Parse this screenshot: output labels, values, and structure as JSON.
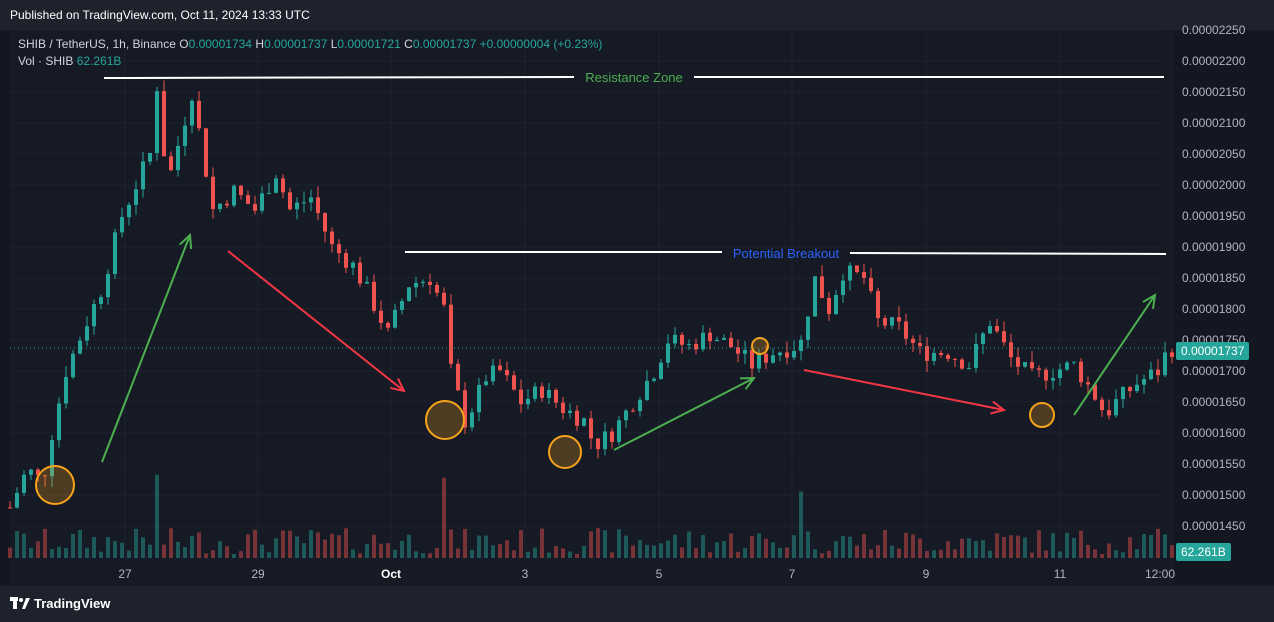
{
  "header": {
    "published": "Published on TradingView.com, Oct 11, 2024 13:33 UTC"
  },
  "legend": {
    "symbol": "SHIB / TetherUS, 1h, Binance",
    "open_label": "O",
    "open": "0.00001734",
    "high_label": "H",
    "high": "0.00001737",
    "low_label": "L",
    "low": "0.00001721",
    "close_label": "C",
    "close": "0.00001737",
    "change": "+0.00000004 (+0.23%)",
    "vol_label": "Vol · SHIB",
    "vol": "62.261B"
  },
  "footer": {
    "brand": "TradingView"
  },
  "colors": {
    "up": "#26a69a",
    "down": "#ef5350",
    "bg": "#161a25",
    "grid": "#1f2330",
    "green_arrow": "#4caf50",
    "red_arrow": "#f23645",
    "circle": "#f7a21b"
  },
  "chart_data": {
    "type": "candlestick",
    "x_ticks": [
      "27",
      "29",
      "Oct",
      "3",
      "5",
      "7",
      "9",
      "11",
      "12:00"
    ],
    "y_ticks": [
      "0.00002250",
      "0.00002200",
      "0.00002150",
      "0.00002100",
      "0.00002050",
      "0.00002000",
      "0.00001950",
      "0.00001900",
      "0.00001850",
      "0.00001800",
      "0.00001750",
      "0.00001700",
      "0.00001650",
      "0.00001600",
      "0.00001550",
      "0.00001500",
      "0.00001450"
    ],
    "ylim": [
      1.42e-05,
      2.25e-05
    ],
    "last_price": "0.00001737",
    "last_volume": "62.261B",
    "price_path": [
      [
        0,
        1.48e-05
      ],
      [
        2,
        1.53e-05
      ],
      [
        3.6,
        1.54e-05
      ],
      [
        4.5,
        1.51e-05
      ],
      [
        6,
        1.6e-05
      ],
      [
        8,
        1.7e-05
      ],
      [
        11,
        1.78e-05
      ],
      [
        13,
        1.83e-05
      ],
      [
        16,
        1.95e-05
      ],
      [
        20,
        2.05e-05
      ],
      [
        21,
        2.16e-05
      ],
      [
        22.5,
        2e-05
      ],
      [
        26,
        2.15e-05
      ],
      [
        29,
        1.96e-05
      ],
      [
        32,
        1.99e-05
      ],
      [
        35,
        1.96e-05
      ],
      [
        38,
        2.02e-05
      ],
      [
        40,
        1.96e-05
      ],
      [
        43,
        1.98e-05
      ],
      [
        46,
        1.9e-05
      ],
      [
        49,
        1.87e-05
      ],
      [
        51,
        1.83e-05
      ],
      [
        54,
        1.76e-05
      ],
      [
        57,
        1.84e-05
      ],
      [
        60,
        1.85e-05
      ],
      [
        62,
        1.8e-05
      ],
      [
        63,
        1.7e-05
      ],
      [
        65,
        1.62e-05
      ],
      [
        66,
        1.64e-05
      ],
      [
        68,
        1.69e-05
      ],
      [
        70,
        1.7e-05
      ],
      [
        73,
        1.65e-05
      ],
      [
        76,
        1.67e-05
      ],
      [
        79,
        1.64e-05
      ],
      [
        82,
        1.62e-05
      ],
      [
        83.5,
        1.58e-05
      ],
      [
        86,
        1.6e-05
      ],
      [
        89,
        1.65e-05
      ],
      [
        92,
        1.7e-05
      ],
      [
        94,
        1.75e-05
      ],
      [
        97,
        1.74e-05
      ],
      [
        100,
        1.76e-05
      ],
      [
        103,
        1.74e-05
      ],
      [
        106,
        1.71e-05
      ],
      [
        109,
        1.73e-05
      ],
      [
        112,
        1.74e-05
      ],
      [
        113.6,
        1.75e-05
      ],
      [
        114.5,
        1.86e-05
      ],
      [
        117,
        1.8e-05
      ],
      [
        119,
        1.86e-05
      ],
      [
        122,
        1.85e-05
      ],
      [
        124,
        1.78e-05
      ],
      [
        127,
        1.77e-05
      ],
      [
        130,
        1.73e-05
      ],
      [
        134,
        1.73e-05
      ],
      [
        137,
        1.71e-05
      ],
      [
        140,
        1.78e-05
      ],
      [
        143,
        1.72e-05
      ],
      [
        146,
        1.69e-05
      ],
      [
        149,
        1.7e-05
      ],
      [
        152,
        1.71e-05
      ],
      [
        155,
        1.66e-05
      ],
      [
        156.5,
        1.63e-05
      ],
      [
        158,
        1.65e-05
      ],
      [
        161,
        1.68e-05
      ],
      [
        164,
        1.7e-05
      ],
      [
        165.5,
        1.737e-05
      ]
    ]
  },
  "annotations": {
    "resistance": "Resistance Zone",
    "breakout": "Potential Breakout"
  }
}
